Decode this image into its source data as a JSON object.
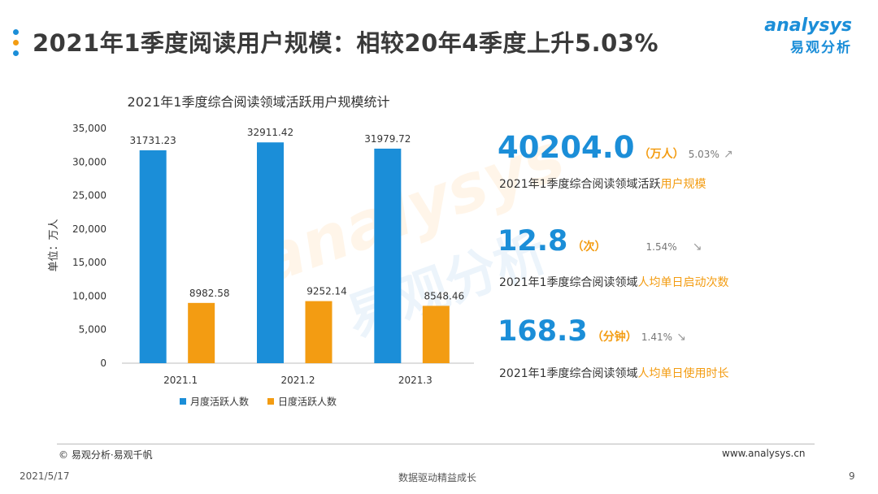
{
  "header": {
    "title": "2021年1季度阅读用户规模：相较20年4季度上升5.03%",
    "dot_colors": [
      "#1b8ed8",
      "#f39c12",
      "#1b8ed8"
    ]
  },
  "logo": {
    "en": "analysys",
    "cn": "易观分析"
  },
  "watermark": {
    "en": "analysys",
    "cn": "易观分析"
  },
  "chart_data": {
    "type": "bar",
    "title": "2021年1季度综合阅读领域活跃用户规模统计",
    "ylabel": "单位：万人",
    "xlabel": "",
    "categories": [
      "2021.1",
      "2021.2",
      "2021.3"
    ],
    "series": [
      {
        "name": "月度活跃人数",
        "color": "#1b8ed8",
        "values": [
          31731.23,
          32911.42,
          31979.72
        ]
      },
      {
        "name": "日度活跃人数",
        "color": "#f39c12",
        "values": [
          8982.58,
          9252.14,
          8548.46
        ]
      }
    ],
    "data_labels": [
      [
        "31731.23",
        "32911.42",
        "31979.72"
      ],
      [
        "8982.58",
        "9252.14",
        "8548.46"
      ]
    ],
    "yticks": [
      "0",
      "5,000",
      "10,000",
      "15,000",
      "20,000",
      "25,000",
      "30,000",
      "35,000"
    ],
    "ylim": [
      0,
      35000
    ],
    "grid": false,
    "legend_position": "bottom"
  },
  "stats": [
    {
      "value": "40204.0",
      "unit": "（万人）",
      "pct": "5.03%",
      "trend": "up",
      "desc_prefix": "2021年1季度综合阅读领域活跃",
      "desc_highlight": "用户规模"
    },
    {
      "value": "12.8",
      "unit": "（次）",
      "pct": "1.54%",
      "trend": "down",
      "desc_prefix": "2021年1季度综合阅读领域",
      "desc_highlight": "人均单日启动次数"
    },
    {
      "value": "168.3",
      "unit": "（分钟）",
      "pct": "1.41%",
      "trend": "down",
      "desc_prefix": "2021年1季度综合阅读领域",
      "desc_highlight": "人均单日使用时长"
    }
  ],
  "footer": {
    "source": "© 易观分析·易观千帆",
    "url": "www.analysys.cn",
    "date": "2021/5/17",
    "slogan": "数据驱动精益成长",
    "page": "9"
  }
}
